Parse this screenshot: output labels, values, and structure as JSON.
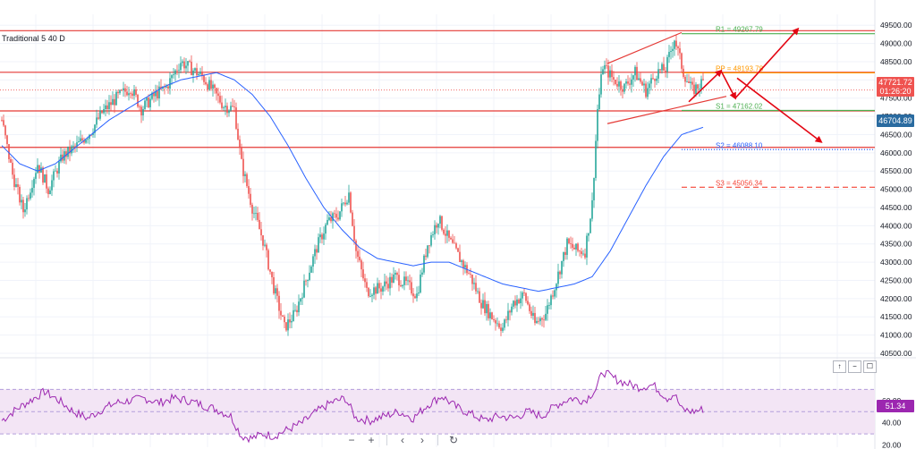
{
  "indicator_label": "Traditional 5 40 D",
  "badges": {
    "last_price": "47721.72",
    "countdown": "01:26:20",
    "ma_value": "46704.89",
    "rsi_value": "51.34"
  },
  "colors": {
    "up": "#26a69a",
    "down": "#ef5350",
    "ma": "#2962ff",
    "rsi": "#9c27b0",
    "rsi_band": "#f3e5f5",
    "resistance": "#e53935",
    "arrow": "#e30613",
    "pivot_pp": "#ff9800",
    "pivot_r1": "#4caf50",
    "pivot_s1": "#4caf50",
    "pivot_s2": "#2962ff",
    "pivot_s3": "#f44336",
    "last_price_badge": "#ef5350",
    "ma_badge": "#2a6ba0"
  },
  "pane_buttons": [
    "↑",
    "−",
    "☐"
  ],
  "nav_buttons": {
    "zoom_out": "−",
    "zoom_in": "+",
    "back": "‹",
    "forward": "›",
    "reset": "↻"
  },
  "chart_data": {
    "type": "candlestick",
    "price_axis": {
      "ticks": [
        49500,
        49000,
        48500,
        48000,
        47500,
        47000,
        46500,
        46000,
        45500,
        45000,
        44500,
        44000,
        43500,
        43000,
        42500,
        42000,
        41500,
        41000,
        40500
      ],
      "ylim": [
        40450,
        49800
      ]
    },
    "rsi_axis": {
      "ticks": [
        60,
        40,
        20
      ],
      "ylim": [
        18,
        92
      ],
      "band": [
        30,
        70
      ]
    },
    "pivots": [
      {
        "label": "R1",
        "text": "R1 = 49267.79",
        "value": 49267.79,
        "color_key": "pivot_r1",
        "style": "solid"
      },
      {
        "label": "PP",
        "text": "PP = 48193.78",
        "value": 48193.78,
        "color_key": "pivot_pp",
        "style": "solid"
      },
      {
        "label": "S1",
        "text": "S1 = 47162.02",
        "value": 47162.02,
        "color_key": "pivot_s1",
        "style": "solid"
      },
      {
        "label": "S2",
        "text": "S2 = 46088.10",
        "value": 46088.1,
        "color_key": "pivot_s2",
        "style": "dotted"
      },
      {
        "label": "S3",
        "text": "S3 = 45056.34",
        "value": 45056.34,
        "color_key": "pivot_s3",
        "style": "dashed"
      }
    ],
    "horizontal_levels": [
      49350,
      48210,
      47150,
      46150
    ],
    "last_price": 47721.72,
    "ma_last": 46704.89,
    "rsi_last": 51.34,
    "close_anchors": [
      [
        0,
        46900
      ],
      [
        6,
        45400
      ],
      [
        12,
        44400
      ],
      [
        20,
        45700
      ],
      [
        26,
        45000
      ],
      [
        34,
        45900
      ],
      [
        42,
        46200
      ],
      [
        50,
        46600
      ],
      [
        56,
        47100
      ],
      [
        64,
        47500
      ],
      [
        72,
        47800
      ],
      [
        78,
        47200
      ],
      [
        86,
        47600
      ],
      [
        92,
        47800
      ],
      [
        100,
        48500
      ],
      [
        106,
        48300
      ],
      [
        112,
        48100
      ],
      [
        118,
        47700
      ],
      [
        124,
        47300
      ],
      [
        130,
        47200
      ],
      [
        134,
        45700
      ],
      [
        140,
        44500
      ],
      [
        146,
        43600
      ],
      [
        152,
        42300
      ],
      [
        158,
        41200
      ],
      [
        164,
        41600
      ],
      [
        170,
        42500
      ],
      [
        176,
        43400
      ],
      [
        182,
        44100
      ],
      [
        188,
        44300
      ],
      [
        194,
        44900
      ],
      [
        198,
        43300
      ],
      [
        204,
        42200
      ],
      [
        212,
        42300
      ],
      [
        220,
        42600
      ],
      [
        226,
        42400
      ],
      [
        232,
        42100
      ],
      [
        238,
        43500
      ],
      [
        244,
        44200
      ],
      [
        250,
        43600
      ],
      [
        256,
        43100
      ],
      [
        262,
        42600
      ],
      [
        268,
        41900
      ],
      [
        274,
        41500
      ],
      [
        280,
        41200
      ],
      [
        286,
        41900
      ],
      [
        292,
        42100
      ],
      [
        298,
        41300
      ],
      [
        304,
        41600
      ],
      [
        310,
        42500
      ],
      [
        316,
        43500
      ],
      [
        322,
        43300
      ],
      [
        326,
        43300
      ],
      [
        330,
        44600
      ],
      [
        333,
        47200
      ],
      [
        336,
        48400
      ],
      [
        342,
        48000
      ],
      [
        348,
        47800
      ],
      [
        354,
        48200
      ],
      [
        360,
        47700
      ],
      [
        366,
        48200
      ],
      [
        371,
        48300
      ],
      [
        376,
        49150
      ],
      [
        381,
        48200
      ],
      [
        386,
        47700
      ],
      [
        392,
        47950
      ]
    ],
    "ma_anchors": [
      [
        0,
        46200
      ],
      [
        10,
        45700
      ],
      [
        20,
        45500
      ],
      [
        30,
        45700
      ],
      [
        40,
        46100
      ],
      [
        50,
        46500
      ],
      [
        60,
        46900
      ],
      [
        70,
        47200
      ],
      [
        80,
        47500
      ],
      [
        90,
        47800
      ],
      [
        100,
        48000
      ],
      [
        110,
        48100
      ],
      [
        120,
        48200
      ],
      [
        130,
        48000
      ],
      [
        140,
        47600
      ],
      [
        150,
        47000
      ],
      [
        160,
        46200
      ],
      [
        170,
        45300
      ],
      [
        180,
        44500
      ],
      [
        190,
        43900
      ],
      [
        200,
        43400
      ],
      [
        210,
        43100
      ],
      [
        220,
        43000
      ],
      [
        230,
        42900
      ],
      [
        240,
        43000
      ],
      [
        250,
        43000
      ],
      [
        260,
        42800
      ],
      [
        270,
        42600
      ],
      [
        280,
        42400
      ],
      [
        290,
        42300
      ],
      [
        300,
        42200
      ],
      [
        310,
        42300
      ],
      [
        320,
        42400
      ],
      [
        330,
        42600
      ],
      [
        340,
        43300
      ],
      [
        350,
        44200
      ],
      [
        360,
        45100
      ],
      [
        370,
        45900
      ],
      [
        380,
        46500
      ],
      [
        392,
        46700
      ]
    ],
    "rsi_anchors": [
      [
        0,
        42
      ],
      [
        8,
        52
      ],
      [
        16,
        60
      ],
      [
        24,
        68
      ],
      [
        32,
        60
      ],
      [
        40,
        50
      ],
      [
        48,
        44
      ],
      [
        56,
        52
      ],
      [
        64,
        58
      ],
      [
        72,
        60
      ],
      [
        80,
        62
      ],
      [
        88,
        58
      ],
      [
        96,
        62
      ],
      [
        104,
        60
      ],
      [
        112,
        56
      ],
      [
        120,
        52
      ],
      [
        128,
        46
      ],
      [
        134,
        28
      ],
      [
        140,
        26
      ],
      [
        146,
        30
      ],
      [
        152,
        28
      ],
      [
        160,
        34
      ],
      [
        168,
        40
      ],
      [
        176,
        50
      ],
      [
        184,
        58
      ],
      [
        192,
        62
      ],
      [
        198,
        44
      ],
      [
        206,
        42
      ],
      [
        214,
        46
      ],
      [
        222,
        50
      ],
      [
        230,
        44
      ],
      [
        238,
        56
      ],
      [
        246,
        64
      ],
      [
        254,
        54
      ],
      [
        262,
        48
      ],
      [
        270,
        42
      ],
      [
        278,
        46
      ],
      [
        286,
        44
      ],
      [
        294,
        50
      ],
      [
        302,
        46
      ],
      [
        310,
        56
      ],
      [
        318,
        62
      ],
      [
        326,
        60
      ],
      [
        332,
        70
      ],
      [
        336,
        86
      ],
      [
        342,
        80
      ],
      [
        348,
        76
      ],
      [
        356,
        72
      ],
      [
        364,
        74
      ],
      [
        372,
        62
      ],
      [
        376,
        66
      ],
      [
        380,
        52
      ],
      [
        386,
        50
      ],
      [
        392,
        52
      ]
    ]
  }
}
